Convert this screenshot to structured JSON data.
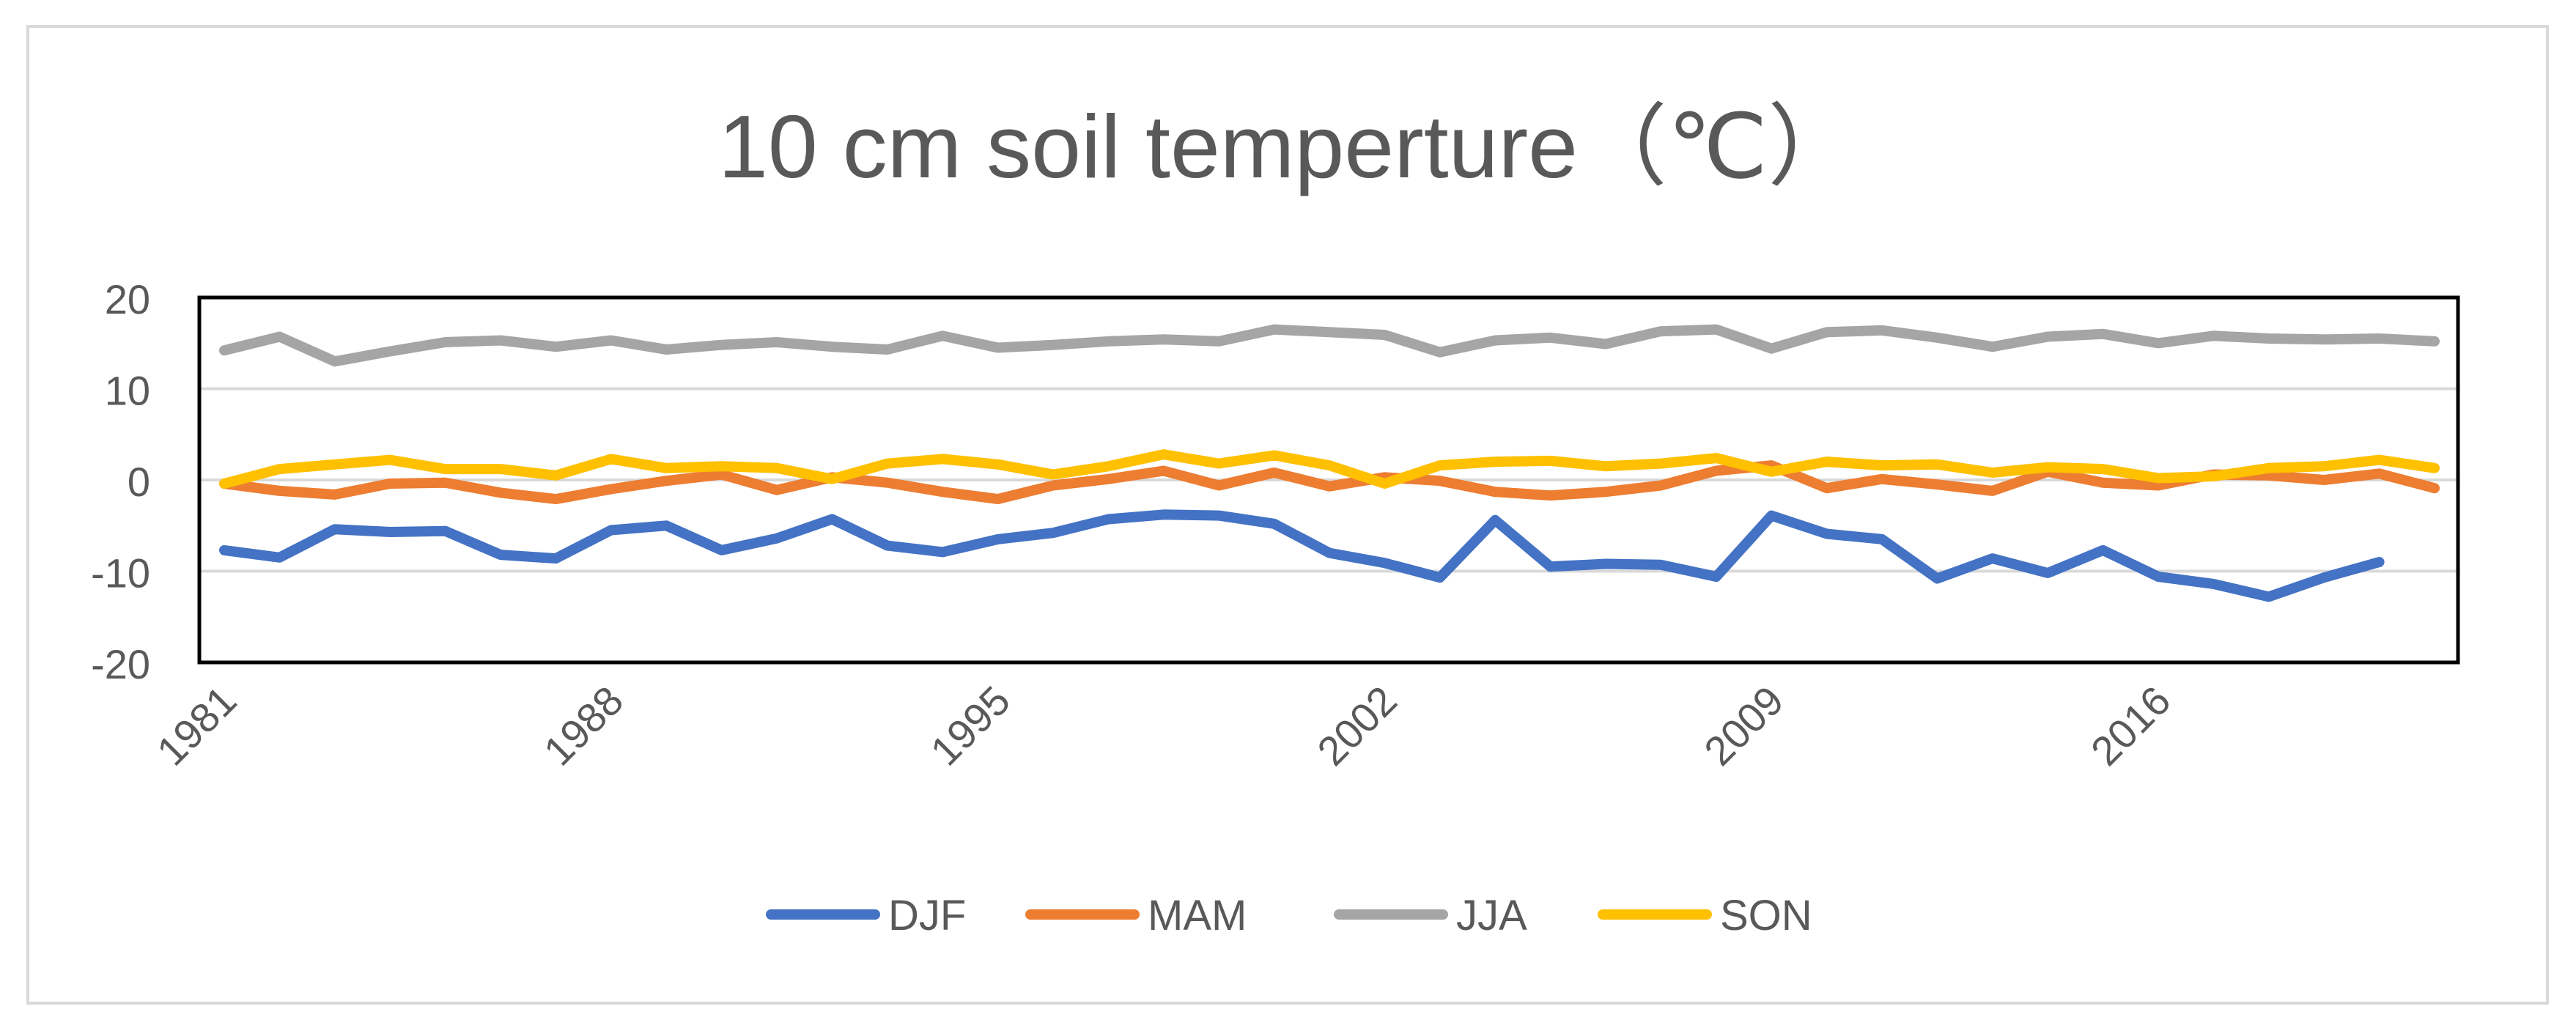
{
  "chart_data": {
    "type": "line",
    "title": "10 cm soil temperture（℃）",
    "xlabel": "",
    "ylabel": "",
    "ylim": [
      -20,
      20
    ],
    "yticks": [
      20,
      10,
      0,
      -10,
      -20
    ],
    "xtick_labels": [
      "1981",
      "1988",
      "1995",
      "2002",
      "2009",
      "2016"
    ],
    "grid": true,
    "legend_position": "bottom",
    "x": [
      1981,
      1982,
      1983,
      1984,
      1985,
      1986,
      1987,
      1988,
      1989,
      1990,
      1991,
      1992,
      1993,
      1994,
      1995,
      1996,
      1997,
      1998,
      1999,
      2000,
      2001,
      2002,
      2003,
      2004,
      2005,
      2006,
      2007,
      2008,
      2009,
      2010,
      2011,
      2012,
      2013,
      2014,
      2015,
      2016,
      2017,
      2018,
      2019,
      2020,
      2021
    ],
    "series": [
      {
        "name": "DJF",
        "color": "#4472C4",
        "values": [
          -7.7,
          -8.5,
          -5.4,
          -5.7,
          -5.6,
          -8.2,
          -8.6,
          -5.5,
          -5.0,
          -7.7,
          -6.4,
          -4.3,
          -7.2,
          -7.9,
          -6.5,
          -5.8,
          -4.3,
          -3.8,
          -3.9,
          -4.8,
          -8.0,
          -9.1,
          -10.7,
          -4.4,
          -9.5,
          -9.2,
          -9.3,
          -10.6,
          -3.9,
          -5.9,
          -6.5,
          -10.8,
          -8.6,
          -10.2,
          -7.7,
          -10.6,
          -11.4,
          -12.8,
          -10.7,
          -9.0,
          null
        ]
      },
      {
        "name": "MAM",
        "color": "#ED7D31",
        "values": [
          -0.4,
          -1.2,
          -1.6,
          -0.4,
          -0.3,
          -1.4,
          -2.1,
          -1.0,
          -0.1,
          0.6,
          -1.1,
          0.3,
          -0.3,
          -1.3,
          -2.1,
          -0.6,
          0.1,
          1.0,
          -0.6,
          0.8,
          -0.7,
          0.3,
          -0.1,
          -1.3,
          -1.7,
          -1.3,
          -0.6,
          1.0,
          1.6,
          -0.9,
          0.1,
          -0.5,
          -1.2,
          0.9,
          -0.3,
          -0.6,
          0.6,
          0.5,
          0.0,
          0.7,
          -0.9
        ]
      },
      {
        "name": "JJA",
        "color": "#A5A5A5",
        "values": [
          14.2,
          15.7,
          13.0,
          14.1,
          15.1,
          15.3,
          14.6,
          15.3,
          14.3,
          14.8,
          15.1,
          14.6,
          14.3,
          15.8,
          14.5,
          14.8,
          15.2,
          15.4,
          15.2,
          16.5,
          16.2,
          15.9,
          14.0,
          15.3,
          15.6,
          14.9,
          16.3,
          16.5,
          14.4,
          16.2,
          16.4,
          15.6,
          14.6,
          15.7,
          16.0,
          15.0,
          15.8,
          15.5,
          15.4,
          15.5,
          15.2
        ]
      },
      {
        "name": "SON",
        "color": "#FFC000",
        "values": [
          -0.4,
          1.2,
          1.7,
          2.2,
          1.2,
          1.2,
          0.5,
          2.3,
          1.3,
          1.5,
          1.3,
          0.1,
          1.8,
          2.3,
          1.7,
          0.6,
          1.5,
          2.8,
          1.8,
          2.7,
          1.6,
          -0.4,
          1.6,
          2.0,
          2.1,
          1.5,
          1.8,
          2.4,
          0.9,
          2.0,
          1.6,
          1.7,
          0.8,
          1.4,
          1.2,
          0.2,
          0.4,
          1.3,
          1.5,
          2.2,
          1.3
        ]
      }
    ]
  }
}
